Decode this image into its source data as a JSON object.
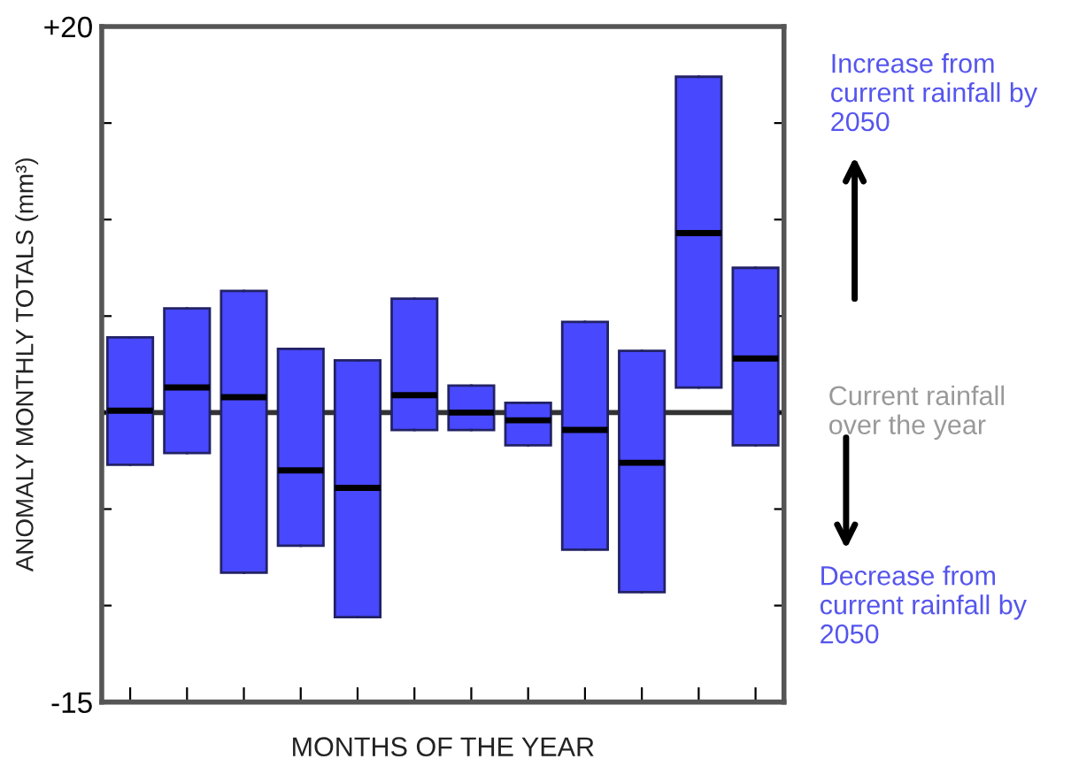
{
  "chart_data": {
    "type": "box",
    "ylabel": "ANOMALY MONTHLY TOTALS (mm³)",
    "xlabel": "MONTHS OF THE YEAR",
    "categories": [
      null,
      null,
      null,
      null,
      null,
      null,
      null,
      null,
      null,
      null,
      null,
      null
    ],
    "color": "#4848ff",
    "boxes": [
      {
        "low": -2.7,
        "q1": -2.7,
        "median": 0.1,
        "q3": 3.9,
        "high": 3.9
      },
      {
        "low": -2.1,
        "q1": -2.1,
        "median": 1.3,
        "q3": 5.4,
        "high": 5.4
      },
      {
        "low": -8.3,
        "q1": -8.3,
        "median": 0.8,
        "q3": 6.3,
        "high": 6.3
      },
      {
        "low": -6.9,
        "q1": -6.9,
        "median": -3.0,
        "q3": 3.3,
        "high": 3.3
      },
      {
        "low": -10.6,
        "q1": -10.6,
        "median": -3.9,
        "q3": 2.7,
        "high": 2.7
      },
      {
        "low": -0.9,
        "q1": -0.9,
        "median": 0.9,
        "q3": 5.9,
        "high": 5.9
      },
      {
        "low": -0.9,
        "q1": -0.9,
        "median": 0.0,
        "q3": 1.4,
        "high": 1.4
      },
      {
        "low": -1.7,
        "q1": -1.7,
        "median": -0.4,
        "q3": 0.5,
        "high": 0.5
      },
      {
        "low": -7.1,
        "q1": -7.1,
        "median": -0.9,
        "q3": 4.7,
        "high": 4.7
      },
      {
        "low": -9.3,
        "q1": -9.3,
        "median": -2.6,
        "q3": 3.2,
        "high": 3.2
      },
      {
        "low": 1.3,
        "q1": 1.3,
        "median": 9.3,
        "q3": 17.4,
        "high": 17.4
      },
      {
        "low": -1.7,
        "q1": -1.7,
        "median": 2.8,
        "q3": 7.5,
        "high": 7.5
      }
    ],
    "ylim": [
      -15,
      20
    ],
    "yticks": [
      {
        "value": -15,
        "label": "-15"
      },
      {
        "value": -10,
        "label": null
      },
      {
        "value": -5,
        "label": null
      },
      {
        "value": 0,
        "label": null
      },
      {
        "value": 5,
        "label": null
      },
      {
        "value": 10,
        "label": null
      },
      {
        "value": 15,
        "label": null
      },
      {
        "value": 20,
        "label": "+20"
      }
    ],
    "ref_lines": [
      {
        "axis": "y",
        "value": 0,
        "label": "Current rainfall\nover the year",
        "color": "#333333"
      }
    ],
    "annotations": [
      "Increase from\ncurrent rainfall by\n2050",
      "Decrease from\ncurrent rainfall by\n2050"
    ],
    "tick_labels": "y",
    "grid": false
  }
}
